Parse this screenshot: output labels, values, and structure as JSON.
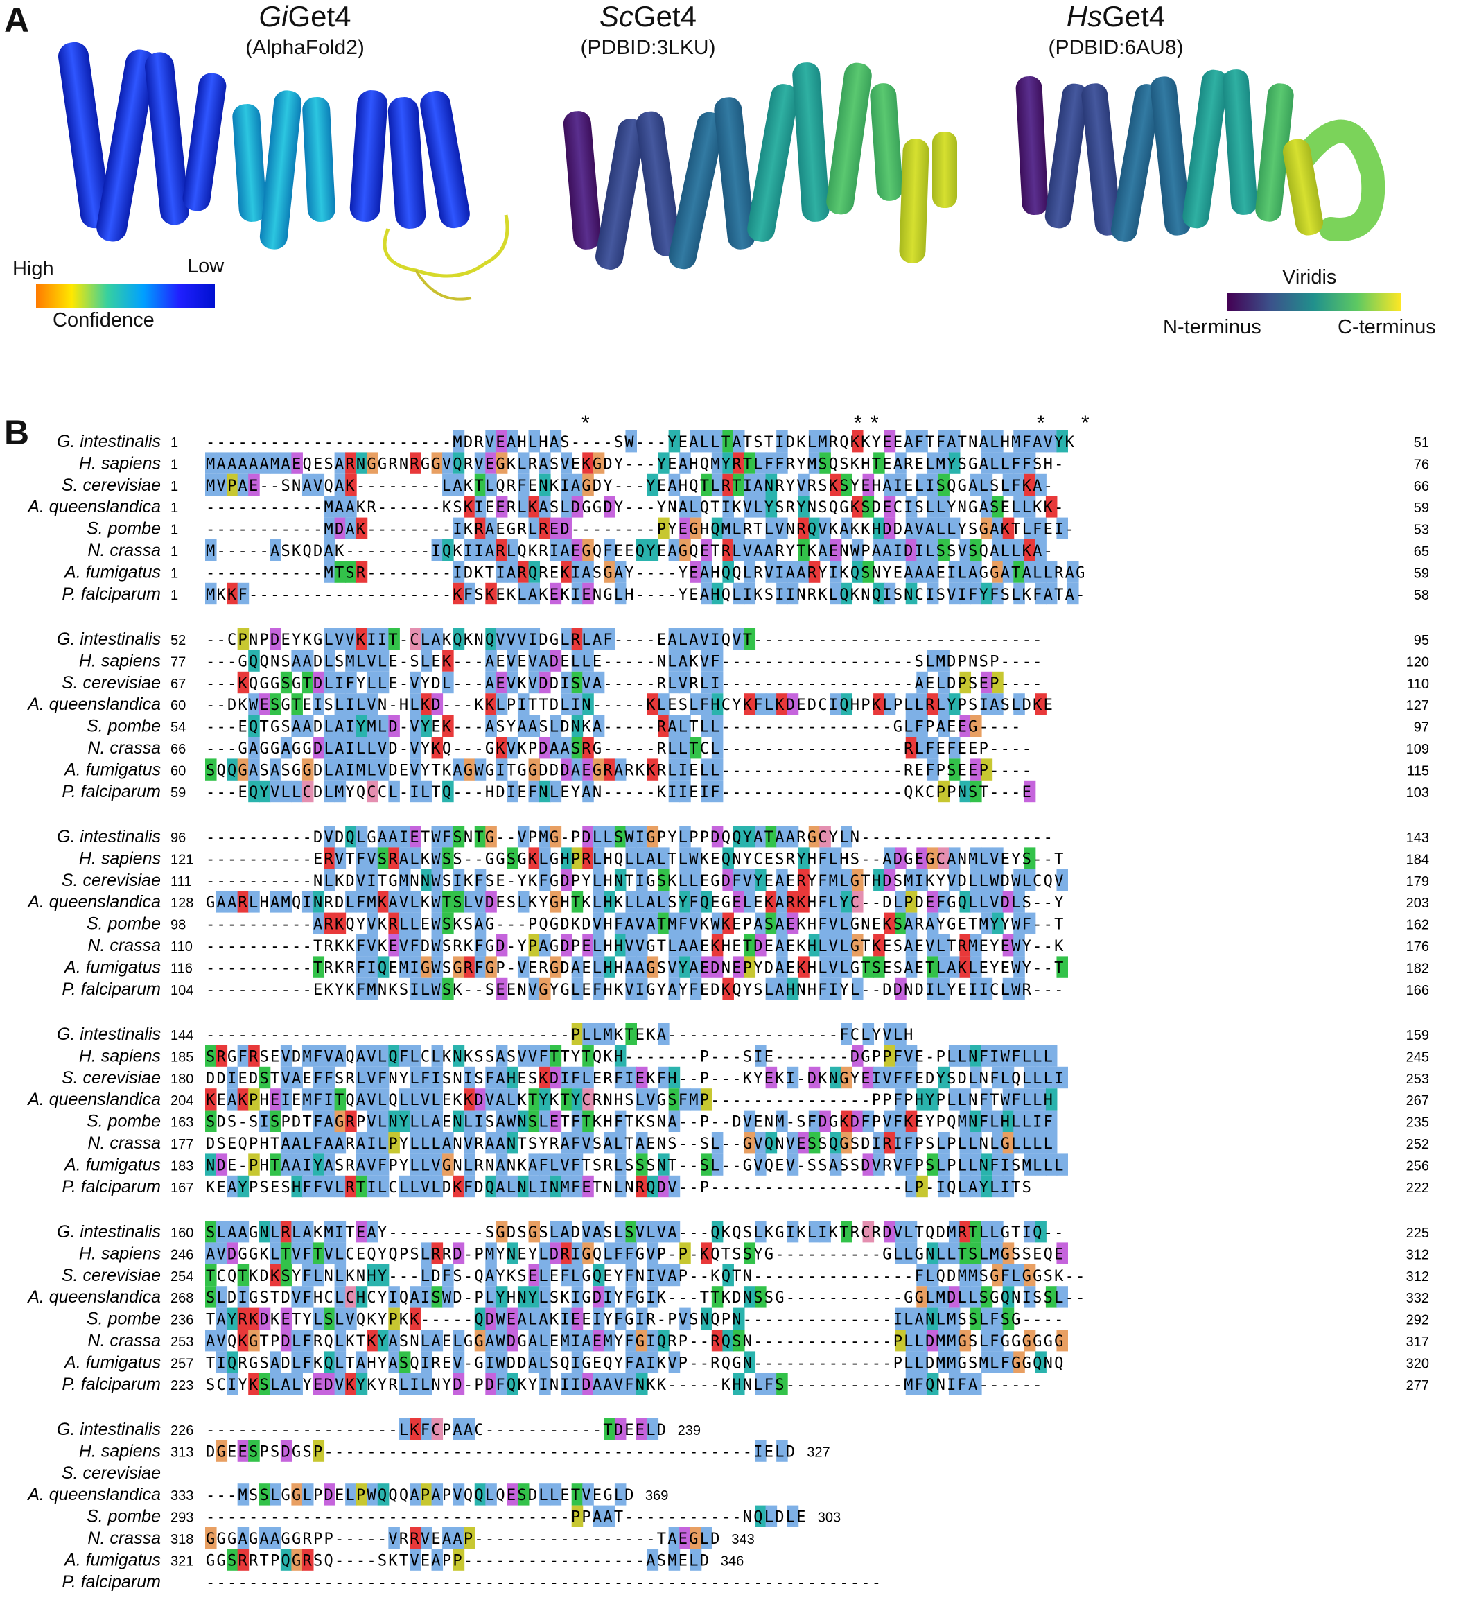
{
  "panel_a": {
    "label": "A",
    "structures": [
      {
        "species": "Gi",
        "protein": "Get4",
        "source": "(AlphaFold2)"
      },
      {
        "species": "Sc",
        "protein": "Get4",
        "source": "(PDBID:3LKU)"
      },
      {
        "species": "Hs",
        "protein": "Get4",
        "source": "(PDBID:6AU8)"
      }
    ],
    "confidence_legend": {
      "high": "High",
      "low": "Low",
      "title": "Confidence"
    },
    "viridis_legend": {
      "title": "Viridis",
      "start": "N-terminus",
      "end": "C-terminus"
    }
  },
  "panel_b": {
    "label": "B",
    "species": [
      "G. intestinalis",
      "H. sapiens",
      "S. cerevisiae",
      "A. queenslandica",
      "S. pombe",
      "N. crassa",
      "A. fumigatus",
      "P. falciparum"
    ],
    "blocks": [
      {
        "starts": [
          "1",
          "1",
          "1",
          "1",
          "1",
          "1",
          "1",
          "1"
        ],
        "ends": [
          "51",
          "76",
          "66",
          "59",
          "53",
          "65",
          "59",
          "58"
        ],
        "seqs": [
          "- - - - - - - - - - - - - - - - - - - - - - - MDRVEAHLHAS- - - - SW- - - YEALLTATSTIDKLMRQKKYEEAFTFATNALHMFAVYK",
          "MAAAAAMAEQESARNGGRNRGGVQRVEGKLRASVEKGDY- - - YEAHQMYRTLFFRYMSQSKHTEARELMYSGALLFFSH-",
          "MVPAE- - SNAVQAK- - - - - - - - LAKTLQRFENKIAGDY- - - YEAHQTLRTIANRYVRSKSYEHAIELISQGALSLFKA-",
          "- - - - - - - - - - - MAAKR- - - - - - KSKIEERLKASLDGGDY- - - YNALQTIKVLYSRYNSQGKSDECISLLYNGASELLKK-",
          "- - - - - - - - - - - MDAK- - - - - - - - IKRAEGRLRED- - - - - - - - PYEGHQMLRTLVNRQVKAKKHDDAVALLYSGAKTLFEI-",
          "M- - - - - ASKQDAK- - - - - - - - IQKIIARLQKRIAEGQFEEQYEAGQETRLVAARYTKAENWPAAIDILSSVSQALLKA-",
          "- - - - - - - - - - - MTSR- - - - - - - - IDKTIARQREKIASGAY- - - - YEAHQQLRVIAARYIKQSNYEAAAEILAGGATALLRAG",
          "MKKF- - - - - - - - - - - - - - - - - - - KFSKEKLAKEKIENGLH- - - - YEAHQLIKSIINRKLQKNQISNCISVIFYFSLKFATA-"
        ]
      },
      {
        "starts": [
          "52",
          "77",
          "67",
          "60",
          "54",
          "66",
          "60",
          "59"
        ],
        "ends": [
          "95",
          "120",
          "110",
          "127",
          "97",
          "109",
          "115",
          "103"
        ],
        "seqs": [
          "- - CPNPDEYKGLVVKIIT- CLAKQKNQVVVIDGLRLAF- - - - EALAVIQVT- - - - - - - - - - - - - - - - - - - - - - - - - - -",
          "- - - GQQNSAADLSMLVLE- SLEK- - - AEVEVADELLE- - - - - NLAKVF- - - - - - - - - - - - - - - - - - SLMDPNSP- - - -",
          "- - - KQGGSGTDLIFYLLE- VYDL- - - AEVKVDDISVA- - - - - RLVRLI- - - - - - - - - - - - - - - - - - AELDPSEP- - - -",
          "- - DKWESGTEISLILVN- HLKD- - - KKLPITTDLIN- - - - - KLESLFHCYKFLKDEDCIQHPKLPLLRLYPSIASLDKE",
          "- - - EQTGSAADLAIYMLD- VYEK- - - ASYAASLDNKA- - - - - RALTLL- - - - - - - - - - - - - - - - GLFPAEEG- - - -",
          "- - - GAGGAGGDLAILLVD- VYKQ- - - GKVKPDAASRG- - - - - RLLTCL- - - - - - - - - - - - - - - - - RLFEFEEP- - - -",
          "SQQGASASGGDLAIMLVDEVYTKAGWGITGGDDDAEGRARKKRLIELL- - - - - - - - - - - - - - - - - REFPSEEP- - - -",
          "- - - EQYVLLCDLMYQCCL- ILTQ- - - HDIEFNLEYAN- - - - - KIIEIF- - - - - - - - - - - - - - - - - QKCPPNST- - - E"
        ]
      },
      {
        "starts": [
          "96",
          "121",
          "111",
          "128",
          "98",
          "110",
          "116",
          "104"
        ],
        "ends": [
          "143",
          "184",
          "179",
          "203",
          "162",
          "176",
          "182",
          "166"
        ],
        "seqs": [
          "- - - - - - - - - - DVDQLGAAIETWFSNTG- - VPMG- PDLLSWIGPYLPPDQQYATAARGCYLN- - - - - - - - - - - - - - - - - -",
          "- - - - - - - - - - ERVTFVSRALKWSS- - GGSGKLGHPRLHQLLALTLWKEQNYCESRYHFLHS- - ADGEGCANMLVEYS- - T",
          "- - - - - - - - - - NLKDVITGMNNWSIKFSE- YKFGDPYLHNTIGSKLLEGDFVYEAERYFMLGTHDSMIKYVDLLWDWLCQV",
          "GAARLHAMQINRDLFMKAVLKWTSLVDESLKYGHTKLHKLLALSYFQEGELEKARKHFLYC- - DLPDEFGQLLVDLS- - Y",
          "- - - - - - - - - - ARKQYVKRLLEWSKSAG- - - PQGDKDVHFAVATMFVKWKEPASAEKHFVLGNEKSARAYGETMYYWF- - T",
          "- - - - - - - - - - TRKKFVKEVFDWSRKFGD- YPAGDPELHHVVGTLAAEKHETDEAEKHLVLGTKESAEVLTRMEYEWY- - K",
          "- - - - - - - - - - TRKRFIQEMIGWSGRFGP- VERGDAELHHAAGSVYAEDNEPYDAEKHLVLGTSESAETLAKLEYEWY- - T",
          "- - - - - - - - - - EKYKFMNKSILWSK- - SEENVGYGLEFHKVIGYAYFEDKQYSLAHNHFIYL- - DDNDILYEIICLWR- - -"
        ]
      },
      {
        "starts": [
          "144",
          "185",
          "180",
          "204",
          "163",
          "177",
          "183",
          "167"
        ],
        "ends": [
          "159",
          "245",
          "253",
          "267",
          "235",
          "252",
          "256",
          "222"
        ],
        "seqs": [
          "- - - - - - - - - - - - - - - - - - - - - - - - - - - - - - - - - - PLLMKTEKA- - - - - - - - - - - - - - - - FCLYVLH",
          "SRGFRSEVDMFVAQAVLQFLCLKNKSSASVVFTTYTQKH- - - - - - - P- - - SIE- - - - - - - DGPPFVE- PLLNFIWFLLL",
          "DDIEDSTVAEFFSRLVFNYLFISNISFAHESKDIFLERFIEKFH- - P- - - KYEKI- DKNGYEIVFFEDYSDLNFLQLLLI",
          "KEAKPHEIEMFITQAVLQLLVLEKKDVALKTYKTYCRNHSLVGSFMP- - - - - - - - - - - - - - - PPFPHYPLLNFTWFLLH",
          "SDS- SISPDTFAGRPVLNYLLAENLISAWNSLETFTKHFTKSNA- - P- - DVENM- SFDGKDFPVFKEYPQMNFLHLLIF",
          "DSEQPHTAALFAARAILPYLLLANVRAANTSYRAFVSALTAENS- - SL- - GVQNVESSQGSDIRIFPSLPLLNLGLLLL",
          "NDE- PHTAAIYASRAVFPYLLVGNLRNANKAFLVFTSRLSSSNT- - SL- - GVQEV- SSASSDVRVFPSLPLLNFISMLLL",
          "KEAYPSESHFFVLRTILCLLVLDKFDQALNLINMFETNLNRQDV- - P- - - - - - - - - - - - - - - - - - LP- IQLAYLITS"
        ]
      },
      {
        "starts": [
          "160",
          "246",
          "254",
          "268",
          "236",
          "253",
          "257",
          "223"
        ],
        "ends": [
          "225",
          "312",
          "312",
          "332",
          "292",
          "317",
          "320",
          "277"
        ],
        "seqs": [
          "SLAAGNLRLAKMITEAY- - - - - - - - - SGDSGSLADVASLSVLVA- - - QKQSLKGIKLIKTRCRDVLTQDMRTLLGTIQ- -",
          "AVDGGKLTVFTVLCEQYQPSLRRD- PMYNEYLDRIGQLFFGVP- P- KQTSSYG- - - - - - - - - - GLLGNLLTSLMGSSEQE",
          "TCQTKDKSYFLNLKNHY- - - LDFS- QAYKSELEFLGQEYFNIVAP- - KQTN- - - - - - - - - - - - - - - FLQDMMSGFLGGSK- -",
          "SLDIGSTDVFHCLCHCYIQAISWD- PLYHNYLSKIGDIYFGIK- - - TTKDNSSG- - - - - - - - - - - GGLMDLLSGQNISSL- -",
          "TAYRKDKETYLSLVQKYPKK- - - - - QDWEALAKIEEIYFGIR- PVSNQPN- - - - - - - - - - - - - - ILANLMSSLFSG- - - -",
          "AVQKGTPDLFRQLKTKYASNLAELGGAWDGALEMIAEMYFGIQRP- - RQSN- - - - - - - - - - - - - PLLDMMGSLFGGGGGG",
          "TIQRGSADLFKQLTAHYASQIREV- GIWDDALSQIGEQYFAIKVP- - RQGN- - - - - - - - - - - - - PLLDMMGSMLFGGQNQ",
          "SCIYKSLALYEDVKYKYRLILNYD- PDFQKYINIIDAAVFNKK- - - - - KHNLFS- - - - - - - - - - - MFQNIFA- - - - - -"
        ]
      },
      {
        "starts": [
          "226",
          "313",
          "",
          "333",
          "293",
          "318",
          "321",
          ""
        ],
        "ends": [
          "239",
          "327",
          "",
          "369",
          "303",
          "343",
          "346",
          ""
        ],
        "seqs": [
          "- - - - - - - - - - - - - - - - - - LKFCPAAC- - - - - - - - - - - TDEELD",
          "DGEESPSDGSP- - - - - - - - - - - - - - - - - - - - - - - - - - - - - - - - - - - - - - - - IELD",
          "",
          "- - - MSSLGGLPDELPWQQQAPAPVQQLQESDLLETVEGLD",
          "- - - - - - - - - - - - - - - - - - - - - - - - - - - - - - - - - - PPAAT- - - - - - - - - - - NQLDLE",
          "GGGAGAAGGRPP- - - - - VRRVEAAP- - - - - - - - - - - - - - - - - TAEGLD",
          "GGSRRTPQGRSQ- - - - SKTVEAPP- - - - - - - - - - - - - - - - - ASMELD",
          "- - - - - - - - - - - - - - - - - - - - - - - - - - - - - - - - - - - - - - - - - - - - - - - - - - - - - - - - - - - - - - -"
        ]
      }
    ],
    "asterisk": "*"
  },
  "colors": {
    "blue": "#7eb0e6",
    "red": "#e8393a",
    "orange": "#e89f62",
    "green": "#33c24a",
    "magenta": "#c564dc",
    "teal": "#2ab3ad",
    "yellow": "#c7c731",
    "pink": "#e48fb0"
  }
}
